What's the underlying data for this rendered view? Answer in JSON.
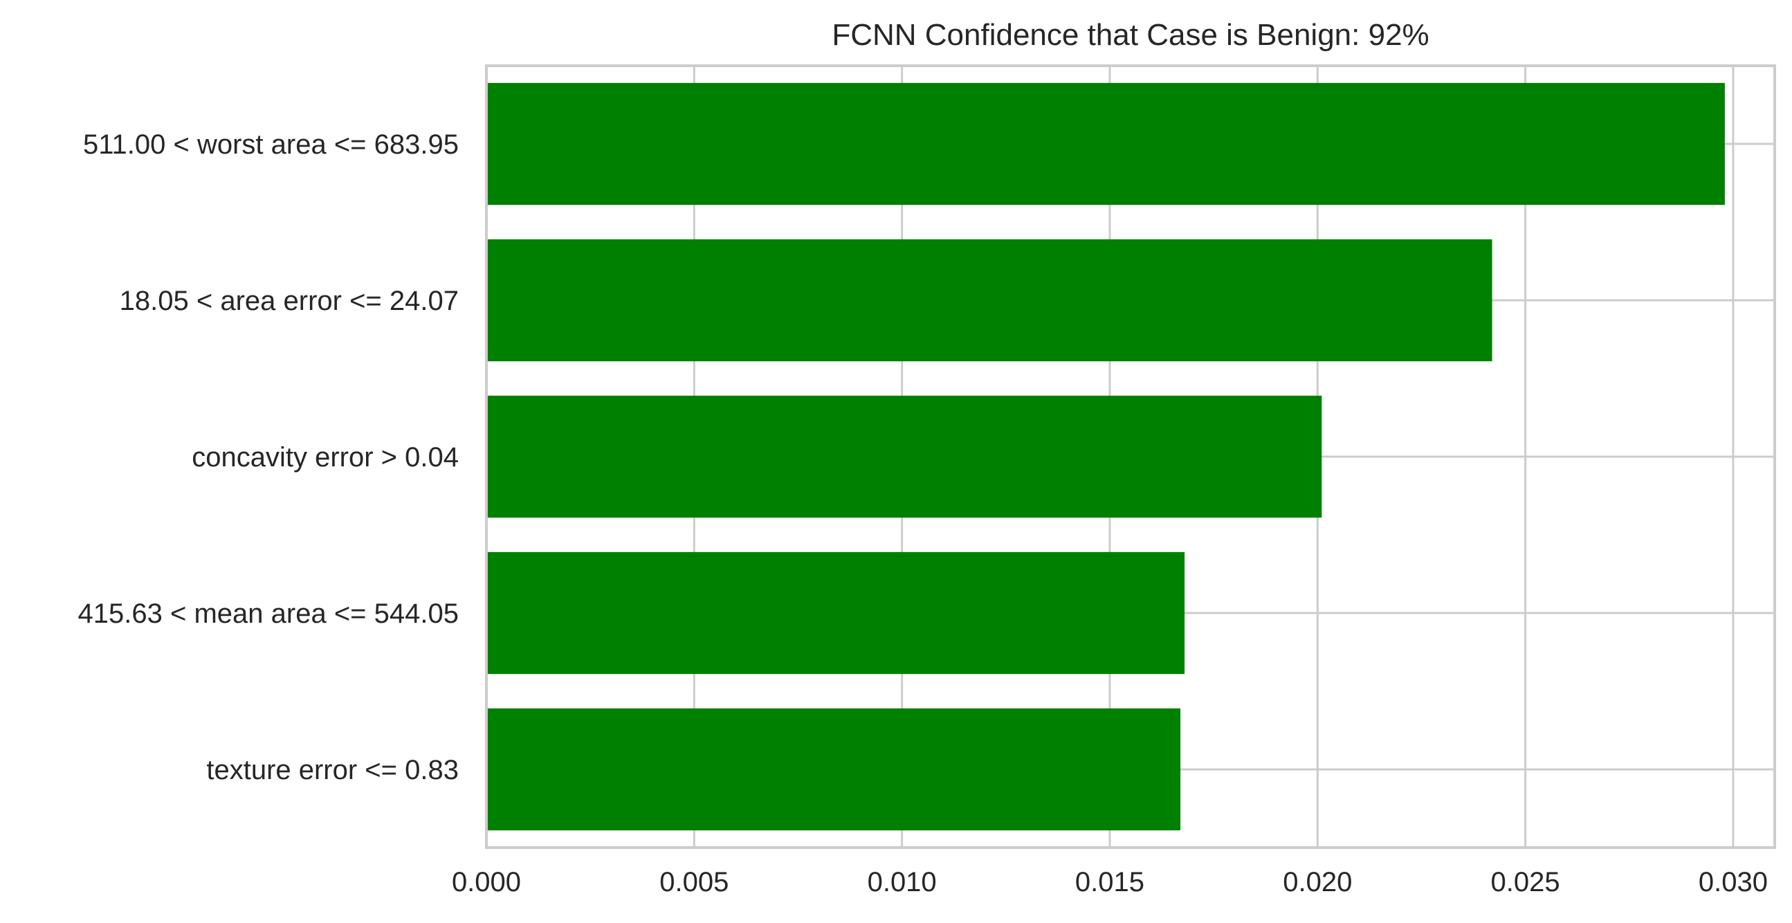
{
  "chart_data": {
    "type": "bar",
    "orientation": "horizontal",
    "title": "FCNN Confidence that Case is Benign: 92%",
    "xlabel": "",
    "ylabel": "",
    "categories": [
      "511.00 < worst area <= 683.95",
      "18.05 < area error <= 24.07",
      "concavity error > 0.04",
      "415.63 < mean area <= 544.05",
      "texture error <= 0.83"
    ],
    "values": [
      0.0298,
      0.0242,
      0.0201,
      0.0168,
      0.0167
    ],
    "xlim": [
      0,
      0.031
    ],
    "xticks": [
      0.0,
      0.005,
      0.01,
      0.015,
      0.02,
      0.025,
      0.03
    ],
    "xtick_labels": [
      "0.000",
      "0.005",
      "0.010",
      "0.015",
      "0.020",
      "0.025",
      "0.030"
    ],
    "grid": true,
    "bar_color": "#008000",
    "grid_color": "#cccccc",
    "text_color": "#262626"
  }
}
